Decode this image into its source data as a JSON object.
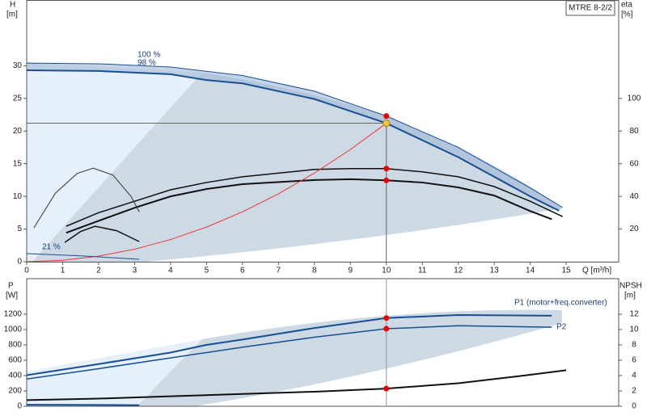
{
  "chart_data": [
    {
      "type": "line",
      "annotation_box": "MTRE 8-2/2",
      "y_label": "H",
      "y_unit": "[m]",
      "y2_label": "eta",
      "y2_unit": "[%]",
      "x_label": "Q [m³/h]",
      "xlim": [
        0,
        16.46
      ],
      "xticks": [
        0,
        1,
        2,
        3,
        4,
        5,
        6,
        7,
        8,
        9,
        10,
        11,
        12,
        13,
        14,
        15
      ],
      "ylim": [
        0,
        40
      ],
      "yticks": [
        0,
        5,
        10,
        15,
        20,
        25,
        30
      ],
      "y2lim": [
        0,
        160
      ],
      "y2ticks": [
        20,
        40,
        60,
        80,
        100
      ],
      "annotations": [
        "100 %",
        "98 %",
        "21 %"
      ],
      "duty_point": {
        "x": 10,
        "y": 21.2
      },
      "series": [
        {
          "color": "#1a4f91",
          "width": 1,
          "x": [
            0,
            2,
            4,
            6,
            8,
            10,
            12,
            14,
            14.9
          ],
          "values": [
            30.4,
            30.3,
            29.8,
            28.5,
            26.1,
            22.3,
            17.5,
            11.3,
            8.3
          ]
        },
        {
          "color": "#1a4f91",
          "width": 2,
          "x": [
            0,
            2,
            4,
            5,
            6,
            8,
            10,
            12,
            14,
            14.8
          ],
          "values": [
            29.3,
            29.2,
            28.7,
            27.8,
            27.3,
            24.9,
            21.2,
            16.0,
            10.0,
            7.8
          ]
        },
        {
          "color": "#111",
          "width": 1.5,
          "axis": "y2",
          "x": [
            1.1,
            2,
            3,
            4,
            5,
            6,
            8,
            9,
            10,
            11,
            12,
            13,
            14,
            14.9
          ],
          "values": [
            21.7,
            30,
            37,
            44,
            48.5,
            52,
            56.5,
            57,
            57,
            55,
            52,
            46,
            37,
            27.6
          ]
        },
        {
          "color": "#111",
          "width": 2,
          "axis": "y2",
          "x": [
            1.1,
            2,
            3,
            4,
            5,
            6,
            8,
            9,
            10,
            11,
            12,
            13,
            14,
            14.6
          ],
          "values": [
            17.7,
            25,
            33,
            40,
            44.5,
            47.5,
            50,
            50.5,
            49.8,
            48.5,
            45.5,
            40.5,
            31,
            26
          ]
        },
        {
          "color": "#e33",
          "width": 1,
          "x": [
            0,
            1,
            2,
            3,
            4,
            5,
            6,
            7,
            8,
            9,
            10
          ],
          "values": [
            0,
            0.21,
            0.85,
            1.91,
            3.39,
            5.3,
            7.63,
            10.39,
            13.57,
            17.17,
            21.2
          ]
        },
        {
          "color": "#333",
          "width": 1,
          "axis": "y2",
          "x": [
            0.2,
            0.8,
            1.4,
            1.85,
            2.4,
            2.9,
            3.13
          ],
          "values": [
            20.7,
            42,
            54,
            57.3,
            53,
            40,
            30.5
          ]
        },
        {
          "color": "#111",
          "width": 1.5,
          "axis": "y2",
          "x": [
            1.06,
            1.5,
            1.9,
            2.5,
            3.13
          ],
          "values": [
            11.8,
            18.5,
            21.7,
            19,
            12.3
          ]
        },
        {
          "color": "#1a4f91",
          "width": 1,
          "x": [
            0,
            1.5,
            3.13
          ],
          "values": [
            1.23,
            0.9,
            0.37
          ]
        }
      ]
    },
    {
      "type": "line",
      "y_label": "P",
      "y_unit": "[W]",
      "y2_label": "NPSH",
      "y2_unit": "[m]",
      "xlim": [
        0,
        16.46
      ],
      "ylim": [
        0,
        1663
      ],
      "yticks": [
        0,
        200,
        400,
        600,
        800,
        1000,
        1200
      ],
      "y2lim": [
        0,
        16.63
      ],
      "y2ticks": [
        0,
        2,
        4,
        6,
        8,
        10,
        12
      ],
      "duty_x": 10,
      "series": [
        {
          "name": "P1 (motor+freq.converter)",
          "color": "#1a4f91",
          "width": 2,
          "x": [
            0,
            2,
            4,
            5,
            6,
            8,
            10,
            12,
            14.6
          ],
          "values": [
            405,
            550,
            700,
            800,
            870,
            1020,
            1150,
            1190,
            1180
          ]
        },
        {
          "name": "P2",
          "color": "#1a4f91",
          "width": 1.5,
          "x": [
            0,
            2,
            4,
            6,
            8,
            10,
            12,
            14.6
          ],
          "values": [
            355,
            490,
            630,
            770,
            900,
            1010,
            1050,
            1030
          ]
        },
        {
          "color": "#111",
          "width": 2,
          "axis": "y2",
          "x": [
            0,
            2,
            4,
            6,
            8,
            10,
            12,
            14,
            15
          ],
          "values": [
            0.8,
            1.0,
            1.3,
            1.6,
            1.9,
            2.3,
            3.0,
            4.1,
            4.7
          ]
        },
        {
          "color": "#1a4f91",
          "width": 2,
          "x": [
            0,
            3.13
          ],
          "values": [
            20,
            15
          ]
        }
      ]
    }
  ]
}
